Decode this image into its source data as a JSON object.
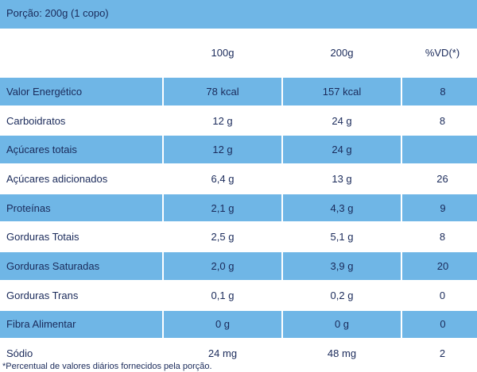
{
  "portion": "Porção: 200g (1 copo)",
  "columns": [
    "",
    "100g",
    "200g",
    "%VD(*)"
  ],
  "rows": [
    {
      "name": "Valor Energético",
      "v100": "78 kcal",
      "v200": "157 kcal",
      "vd": "8"
    },
    {
      "name": "Carboidratos",
      "v100": "12 g",
      "v200": "24 g",
      "vd": "8"
    },
    {
      "name": "Açúcares totais",
      "v100": "12 g",
      "v200": "24 g",
      "vd": ""
    },
    {
      "name": "Açúcares adicionados",
      "v100": "6,4 g",
      "v200": "13 g",
      "vd": "26"
    },
    {
      "name": "Proteínas",
      "v100": "2,1 g",
      "v200": "4,3 g",
      "vd": "9"
    },
    {
      "name": "Gorduras Totais",
      "v100": "2,5 g",
      "v200": "5,1 g",
      "vd": "8"
    },
    {
      "name": "Gorduras Saturadas",
      "v100": "2,0 g",
      "v200": "3,9 g",
      "vd": "20"
    },
    {
      "name": "Gorduras Trans",
      "v100": "0,1 g",
      "v200": "0,2 g",
      "vd": "0"
    },
    {
      "name": "Fibra Alimentar",
      "v100": "0 g",
      "v200": "0 g",
      "vd": "0"
    },
    {
      "name": "Sódio",
      "v100": "24 mg",
      "v200": "48 mg",
      "vd": "2"
    }
  ],
  "footnote": "*Percentual de valores diários fornecidos pela porção.",
  "colors": {
    "accent": "#6fb6e6",
    "text": "#1a2a5a"
  }
}
